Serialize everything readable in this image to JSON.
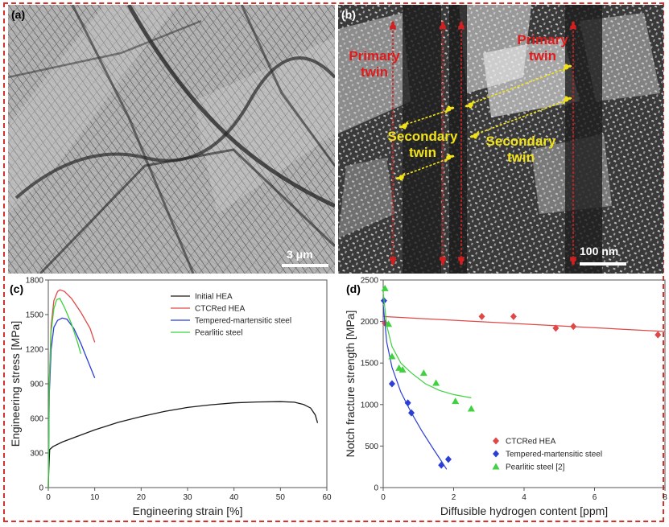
{
  "panels": {
    "a": {
      "letter": "(a)",
      "scale": "3 μm",
      "description_icon": "micrograph-dislocation-network"
    },
    "b": {
      "letter": "(b)",
      "scale": "100 nm",
      "annotations": {
        "primary_left": [
          "Primary",
          "twin"
        ],
        "primary_right": [
          "Primary",
          "twin"
        ],
        "secondary_left": [
          "Secondary",
          "twin"
        ],
        "secondary_right": [
          "Secondary",
          "twin"
        ]
      }
    },
    "c": {
      "letter": "(c)"
    },
    "d": {
      "letter": "(d)"
    }
  },
  "colors": {
    "frame": "#d8302a",
    "initial": "#1a1a1a",
    "ctcred": "#e04848",
    "tempered": "#2b3fd6",
    "pearlitic": "#3fd13f",
    "annotation_red": "#e01b1b",
    "annotation_yellow": "#f2e21a"
  },
  "chart_data": [
    {
      "type": "line",
      "id": "c",
      "xlabel": "Engineering strain [%]",
      "ylabel": "Engineering stress [MPa]",
      "xlim": [
        0,
        60
      ],
      "ylim": [
        0,
        1800
      ],
      "xticks": [
        0,
        10,
        20,
        30,
        40,
        50,
        60
      ],
      "yticks": [
        0,
        300,
        600,
        900,
        1200,
        1500,
        1800
      ],
      "legend": [
        "Initial HEA",
        "CTCRed HEA",
        "Tempered-martensitic steel",
        "Pearlitic steel"
      ],
      "series": [
        {
          "name": "Initial HEA",
          "color": "#1a1a1a",
          "points": [
            [
              0,
              0
            ],
            [
              0.1,
              150
            ],
            [
              0.3,
              330
            ],
            [
              1,
              355
            ],
            [
              3,
              395
            ],
            [
              6,
              440
            ],
            [
              10,
              500
            ],
            [
              15,
              565
            ],
            [
              20,
              615
            ],
            [
              25,
              660
            ],
            [
              30,
              695
            ],
            [
              35,
              718
            ],
            [
              40,
              735
            ],
            [
              45,
              742
            ],
            [
              50,
              745
            ],
            [
              53,
              740
            ],
            [
              55,
              720
            ],
            [
              56.5,
              690
            ],
            [
              57.5,
              630
            ],
            [
              58,
              560
            ]
          ]
        },
        {
          "name": "CTCRed HEA",
          "color": "#e04848",
          "points": [
            [
              0,
              0
            ],
            [
              0.2,
              900
            ],
            [
              0.6,
              1400
            ],
            [
              1.2,
              1620
            ],
            [
              2,
              1700
            ],
            [
              2.5,
              1715
            ],
            [
              3.5,
              1700
            ],
            [
              5,
              1640
            ],
            [
              7,
              1520
            ],
            [
              9,
              1380
            ],
            [
              10,
              1260
            ]
          ]
        },
        {
          "name": "Tempered-martensitic steel",
          "color": "#2b3fd6",
          "points": [
            [
              0,
              0
            ],
            [
              0.2,
              800
            ],
            [
              0.6,
              1200
            ],
            [
              1.2,
              1390
            ],
            [
              2,
              1450
            ],
            [
              3,
              1470
            ],
            [
              4,
              1460
            ],
            [
              5.5,
              1380
            ],
            [
              7,
              1250
            ],
            [
              8.5,
              1100
            ],
            [
              10,
              950
            ]
          ]
        },
        {
          "name": "Pearlitic steel",
          "color": "#3fd13f",
          "points": [
            [
              0,
              0
            ],
            [
              0.2,
              900
            ],
            [
              0.6,
              1350
            ],
            [
              1.2,
              1550
            ],
            [
              1.8,
              1630
            ],
            [
              2.5,
              1640
            ],
            [
              3.5,
              1560
            ],
            [
              5,
              1420
            ],
            [
              6.3,
              1260
            ],
            [
              7,
              1160
            ]
          ]
        }
      ]
    },
    {
      "type": "scatter",
      "id": "d",
      "xlabel": "Diffusible hydrogen content [ppm]",
      "ylabel": "Notch fracture strength [MPa]",
      "xlim": [
        0,
        8
      ],
      "ylim": [
        0,
        2500
      ],
      "xticks": [
        0,
        2,
        4,
        6,
        8
      ],
      "yticks": [
        0,
        500,
        1000,
        1500,
        2000,
        2500
      ],
      "legend": [
        "CTCRed HEA",
        "Tempered-martensitic steel",
        "Pearlitic steel [2]"
      ],
      "series": [
        {
          "name": "CTCRed HEA",
          "color": "#e04848",
          "marker": "diamond",
          "x": [
            0.05,
            2.8,
            3.7,
            4.9,
            5.4,
            7.8
          ],
          "y": [
            1980,
            2060,
            2060,
            1920,
            1940,
            1840
          ],
          "fit": [
            [
              0,
              2060
            ],
            [
              8,
              1880
            ]
          ]
        },
        {
          "name": "Tempered-martensitic steel",
          "color": "#2b3fd6",
          "marker": "diamond",
          "x": [
            0.02,
            0.25,
            0.7,
            0.8,
            1.65,
            1.85
          ],
          "y": [
            2250,
            1250,
            1020,
            900,
            270,
            340
          ],
          "fit": [
            [
              0,
              2200
            ],
            [
              0.1,
              1750
            ],
            [
              0.25,
              1450
            ],
            [
              0.5,
              1150
            ],
            [
              0.8,
              900
            ],
            [
              1.1,
              680
            ],
            [
              1.4,
              480
            ],
            [
              1.65,
              320
            ],
            [
              1.8,
              220
            ]
          ]
        },
        {
          "name": "Pearlitic steel [2]",
          "color": "#3fd13f",
          "marker": "triangle",
          "x": [
            0.05,
            0.15,
            0.25,
            0.45,
            0.55,
            1.15,
            1.5,
            2.05,
            2.5
          ],
          "y": [
            2400,
            1970,
            1580,
            1440,
            1420,
            1380,
            1260,
            1040,
            950
          ],
          "fit": [
            [
              0,
              2350
            ],
            [
              0.1,
              1950
            ],
            [
              0.25,
              1700
            ],
            [
              0.5,
              1500
            ],
            [
              0.8,
              1380
            ],
            [
              1.2,
              1250
            ],
            [
              1.6,
              1170
            ],
            [
              2.0,
              1120
            ],
            [
              2.5,
              1080
            ]
          ]
        }
      ]
    }
  ]
}
